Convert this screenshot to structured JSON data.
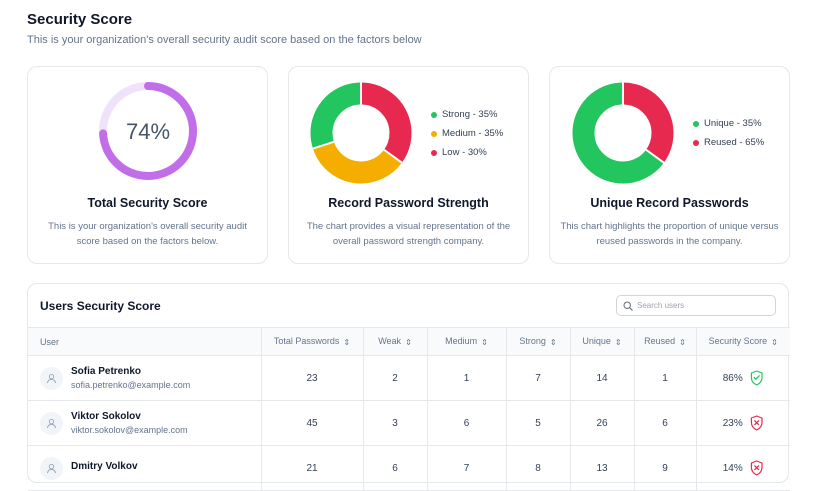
{
  "header": {
    "title": "Security Score",
    "subtitle": "This is your organization's overall security audit score based on the factors below"
  },
  "cards": {
    "total": {
      "value_text": "74%",
      "value": 74,
      "title": "Total Security Score",
      "description": "This is your organization's overall security audit score based on the factors below.",
      "colors": {
        "fill": "#c26ee8",
        "track": "#f0e2fa"
      }
    },
    "strength": {
      "title": "Record Password Strength",
      "description": "The chart provides a visual representation of the overall password strength company.",
      "legend": [
        {
          "label": "Strong - 35%",
          "value": 35,
          "color": "#e8294f"
        },
        {
          "label": "Medium - 35%",
          "value": 35,
          "color": "#f5ae00"
        },
        {
          "label": "Low - 30%",
          "value": 30,
          "color": "#22c55e"
        }
      ],
      "legend_dot_colors": [
        "#22c55e",
        "#f5ae00",
        "#e8294f"
      ]
    },
    "unique": {
      "title": "Unique Record Passwords",
      "description": "This chart highlights the proportion of unique versus reused passwords in the company.",
      "legend": [
        {
          "label": "Unique - 35%",
          "value": 35,
          "color": "#e8294f"
        },
        {
          "label": "Reused - 65%",
          "value": 65,
          "color": "#22c55e"
        }
      ],
      "legend_dot_colors": [
        "#22c55e",
        "#e8294f"
      ]
    }
  },
  "users_table": {
    "title": "Users Security Score",
    "search_placeholder": "Search users",
    "columns": [
      "User",
      "Total Passwords",
      "Weak",
      "Medium",
      "Strong",
      "Unique",
      "Reused",
      "Security Score"
    ],
    "rows": [
      {
        "name": "Sofia Petrenko",
        "email": "sofia.petrenko@example.com",
        "total": "23",
        "weak": "2",
        "medium": "1",
        "strong": "7",
        "unique": "14",
        "reused": "1",
        "score": "86%",
        "status": "good"
      },
      {
        "name": "Viktor Sokolov",
        "email": "viktor.sokolov@example.com",
        "total": "45",
        "weak": "3",
        "medium": "6",
        "strong": "5",
        "unique": "26",
        "reused": "6",
        "score": "23%",
        "status": "bad"
      },
      {
        "name": "Dmitry Volkov",
        "email": "",
        "total": "21",
        "weak": "6",
        "medium": "7",
        "strong": "8",
        "unique": "13",
        "reused": "9",
        "score": "14%",
        "status": "bad"
      }
    ]
  },
  "colors": {
    "good": "#22c55e",
    "bad": "#e8294f"
  }
}
